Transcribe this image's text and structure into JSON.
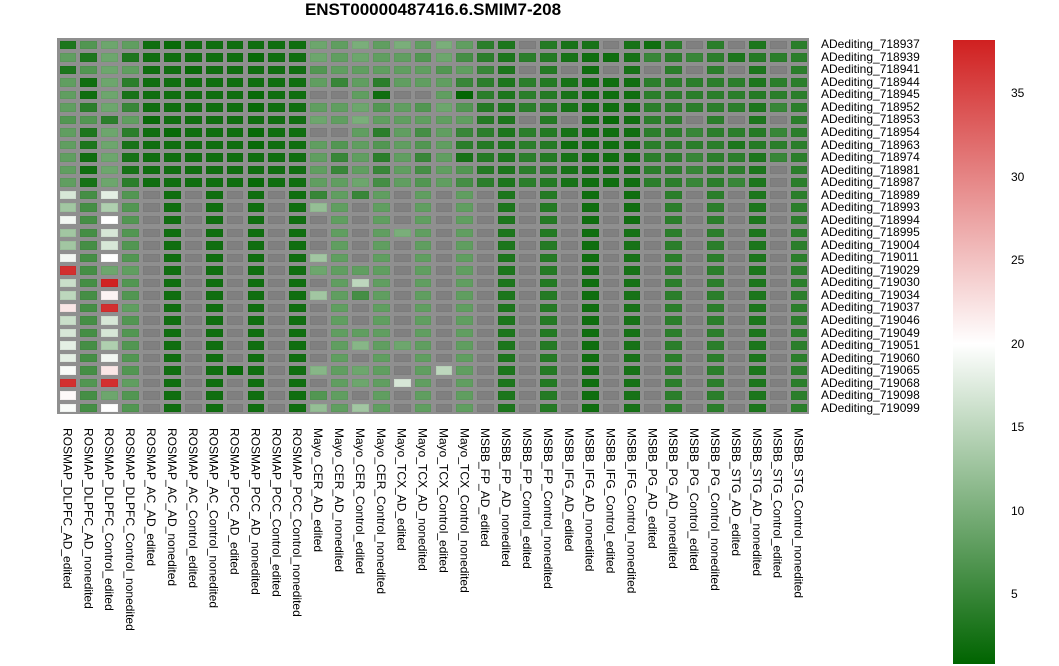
{
  "chart_data": {
    "type": "heatmap",
    "title": "ENST00000487416.6.SMIM7-208",
    "columns": [
      "ROSMAP_DLPFC_AD_edited",
      "ROSMAP_DLPFC_AD_nonedited",
      "ROSMAP_DLPFC_Control_edited",
      "ROSMAP_DLPFC_Control_nonedited",
      "ROSMAP_AC_AD_edited",
      "ROSMAP_AC_AD_nonedited",
      "ROSMAP_AC_Control_edited",
      "ROSMAP_AC_Control_nonedited",
      "ROSMAP_PCC_AD_edited",
      "ROSMAP_PCC_AD_nonedited",
      "ROSMAP_PCC_Control_edited",
      "ROSMAP_PCC_Control_nonedited",
      "Mayo_CER_AD_edited",
      "Mayo_CER_AD_nonedited",
      "Mayo_CER_Control_edited",
      "Mayo_CER_Control_nonedited",
      "Mayo_TCX_AD_edited",
      "Mayo_TCX_AD_nonedited",
      "Mayo_TCX_Control_edited",
      "Mayo_TCX_Control_nonedited",
      "MSBB_FP_AD_edited",
      "MSBB_FP_AD_nonedited",
      "MSBB_FP_Control_edited",
      "MSBB_FP_Control_nonedited",
      "MSBB_IFG_AD_edited",
      "MSBB_IFG_AD_nonedited",
      "MSBB_IFG_Control_edited",
      "MSBB_IFG_Control_nonedited",
      "MSBB_PG_AD_edited",
      "MSBB_PG_AD_nonedited",
      "MSBB_PG_Control_edited",
      "MSBB_PG_Control_nonedited",
      "MSBB_STG_AD_edited",
      "MSBB_STG_AD_nonedited",
      "MSBB_STG_Control_edited",
      "MSBB_STG_Control_nonedited"
    ],
    "rows": [
      "ADediting_718937",
      "ADediting_718939",
      "ADediting_718941",
      "ADediting_718944",
      "ADediting_718945",
      "ADediting_718952",
      "ADediting_718953",
      "ADediting_718954",
      "ADediting_718963",
      "ADediting_718974",
      "ADediting_718981",
      "ADediting_718987",
      "ADediting_718989",
      "ADediting_718993",
      "ADediting_718994",
      "ADediting_718995",
      "ADediting_719004",
      "ADediting_719011",
      "ADediting_719029",
      "ADediting_719030",
      "ADediting_719034",
      "ADediting_719037",
      "ADediting_719046",
      "ADediting_719049",
      "ADediting_719051",
      "ADediting_719060",
      "ADediting_719065",
      "ADediting_719068",
      "ADediting_719098",
      "ADediting_719099"
    ],
    "values": [
      [
        3,
        7,
        9,
        8,
        2,
        1.5,
        2,
        2,
        2,
        2,
        2,
        2,
        9,
        8,
        10,
        8,
        10,
        8,
        10,
        8,
        4,
        3,
        null,
        3.5,
        2.5,
        2.5,
        null,
        2.5,
        2,
        4,
        null,
        4,
        null,
        3,
        null,
        4
      ],
      [
        8,
        3,
        9,
        3,
        2,
        2,
        2,
        2,
        2,
        1.5,
        2,
        2,
        9,
        8,
        9,
        8,
        8,
        7,
        9,
        6,
        4,
        3,
        4,
        3.5,
        2.5,
        2,
        2,
        2.5,
        5,
        4,
        5,
        4,
        3,
        3.5,
        4,
        4
      ],
      [
        3,
        7,
        9,
        8,
        2,
        2,
        1.5,
        2,
        2,
        2,
        2,
        2,
        7,
        8,
        8,
        8,
        8,
        8,
        7,
        8,
        5,
        3,
        null,
        3.5,
        null,
        2,
        null,
        2.5,
        null,
        4,
        null,
        4,
        null,
        3,
        null,
        4
      ],
      [
        8,
        2,
        9,
        4,
        2,
        2,
        2,
        2,
        2,
        2,
        2,
        2,
        8,
        5,
        8,
        4,
        8,
        8,
        8,
        5,
        4,
        3,
        4,
        3.5,
        2.5,
        2,
        2,
        2,
        4,
        4,
        4,
        4,
        4,
        3,
        4,
        4
      ],
      [
        8,
        2,
        9,
        2.5,
        2,
        2,
        2,
        2,
        2,
        1.5,
        2,
        2,
        null,
        null,
        8,
        2,
        null,
        null,
        8,
        1,
        4,
        3,
        4,
        3.5,
        2.5,
        2,
        2,
        2,
        4,
        4,
        4,
        4,
        4,
        3.5,
        4,
        4
      ],
      [
        8,
        4,
        9,
        5,
        2,
        2,
        2,
        2,
        2,
        1.5,
        2,
        2,
        8,
        8,
        9,
        7,
        8,
        7,
        9,
        7,
        3.5,
        3,
        4,
        3.5,
        2.5,
        2,
        2,
        2,
        4,
        4,
        4,
        4,
        4,
        3,
        5,
        4
      ],
      [
        7,
        7,
        4,
        8,
        1.5,
        2,
        2,
        2,
        2,
        2,
        2,
        2,
        9,
        8,
        10,
        8,
        8,
        8,
        8,
        8,
        3.5,
        3,
        null,
        3.5,
        null,
        2,
        1.5,
        2,
        4,
        4,
        null,
        4,
        null,
        3,
        null,
        4
      ],
      [
        8,
        3,
        9,
        4,
        2,
        1.5,
        2,
        2,
        2,
        1.5,
        2,
        2,
        null,
        null,
        8,
        4,
        8,
        6,
        8,
        5,
        4,
        3,
        4,
        3.5,
        2.5,
        2,
        2,
        2,
        4,
        4,
        5,
        4,
        4,
        3.5,
        5,
        4
      ],
      [
        8,
        3,
        9,
        2.5,
        2,
        2,
        2,
        2,
        2,
        1.5,
        2,
        2,
        8,
        7,
        8,
        7,
        8,
        7,
        8,
        4,
        3.5,
        3,
        4,
        3.5,
        2,
        2,
        2,
        2,
        4,
        4,
        4,
        4,
        3,
        3.5,
        4,
        4
      ],
      [
        8,
        2,
        9,
        2.5,
        2,
        2,
        2,
        2,
        2,
        2,
        2,
        2,
        8,
        5,
        8,
        4,
        8,
        5,
        8,
        2.5,
        3.5,
        3,
        4,
        3.5,
        2.5,
        2,
        2,
        2,
        4,
        4,
        5,
        4,
        4,
        3,
        5,
        4
      ],
      [
        8,
        2,
        9,
        2.5,
        2,
        2,
        2,
        2,
        2,
        2,
        2,
        2,
        8,
        5,
        8,
        5,
        8,
        6,
        8,
        7,
        3.5,
        3,
        4,
        3.5,
        2.5,
        2,
        2,
        2,
        4,
        4,
        5,
        4,
        4,
        3,
        null,
        4
      ],
      [
        8,
        2.5,
        9,
        4,
        2,
        2,
        2,
        2,
        2,
        1.5,
        2,
        2,
        8,
        8,
        9,
        6,
        8,
        7,
        8,
        6,
        4,
        3,
        4,
        3.5,
        2.5,
        2,
        2,
        2,
        4,
        4,
        5,
        4,
        5,
        3,
        null,
        4
      ],
      [
        17,
        6,
        18,
        7,
        null,
        2,
        null,
        2,
        null,
        2,
        null,
        2,
        5,
        8,
        5,
        8,
        null,
        8,
        null,
        8,
        null,
        3,
        null,
        3.5,
        null,
        2,
        null,
        2,
        null,
        4,
        null,
        4,
        null,
        3,
        null,
        4
      ],
      [
        13,
        6,
        14,
        7,
        null,
        2,
        null,
        2,
        null,
        2,
        null,
        2,
        12,
        8,
        null,
        8,
        null,
        8,
        null,
        8,
        null,
        3,
        null,
        3.5,
        null,
        2,
        null,
        2,
        null,
        4,
        null,
        4,
        null,
        3,
        null,
        4
      ],
      [
        19,
        6,
        20,
        7,
        null,
        2,
        null,
        2,
        null,
        2,
        null,
        2,
        null,
        8,
        null,
        8,
        null,
        8,
        null,
        8,
        null,
        3,
        null,
        3.5,
        null,
        2,
        null,
        2,
        null,
        4,
        null,
        4,
        null,
        3,
        null,
        4
      ],
      [
        13,
        6,
        17,
        7,
        null,
        2,
        null,
        2,
        null,
        2,
        null,
        2,
        null,
        8,
        null,
        8,
        10,
        8,
        null,
        8,
        null,
        3,
        null,
        3.5,
        null,
        2,
        null,
        2.5,
        null,
        4,
        null,
        4,
        null,
        3,
        null,
        4
      ],
      [
        13,
        6,
        17,
        7,
        null,
        2,
        null,
        2,
        null,
        2,
        null,
        2,
        null,
        8,
        null,
        8,
        null,
        8,
        null,
        8,
        null,
        3,
        null,
        3.5,
        null,
        2,
        null,
        2.5,
        null,
        4,
        null,
        4,
        null,
        3,
        null,
        4
      ],
      [
        19,
        6,
        20,
        7,
        null,
        2,
        null,
        2,
        null,
        2,
        null,
        2,
        13,
        8,
        null,
        8,
        null,
        8,
        null,
        8,
        null,
        3,
        null,
        3.5,
        null,
        2,
        null,
        2.5,
        null,
        4,
        null,
        4,
        null,
        3,
        null,
        4
      ],
      [
        37,
        6,
        9,
        8,
        null,
        2,
        null,
        2,
        null,
        2,
        null,
        2,
        9,
        8,
        8,
        8,
        null,
        8,
        null,
        8,
        null,
        3,
        null,
        3.5,
        null,
        2,
        null,
        2.5,
        null,
        4,
        null,
        4,
        null,
        3,
        null,
        4
      ],
      [
        16,
        6,
        38,
        7,
        null,
        2,
        null,
        2,
        null,
        2,
        null,
        2,
        null,
        8,
        15,
        8,
        null,
        8,
        null,
        8,
        null,
        3,
        null,
        3.5,
        null,
        2,
        null,
        2.5,
        null,
        4,
        null,
        4,
        null,
        3,
        null,
        4
      ],
      [
        15,
        6,
        21,
        7,
        null,
        2,
        null,
        2,
        null,
        2,
        null,
        2,
        13,
        8,
        6,
        8,
        null,
        8,
        null,
        8,
        null,
        3,
        null,
        3.5,
        null,
        2,
        null,
        2.5,
        null,
        4,
        null,
        4,
        null,
        3,
        null,
        4
      ],
      [
        22,
        6,
        37,
        8,
        null,
        2,
        null,
        2,
        null,
        2,
        null,
        2,
        null,
        8,
        null,
        8,
        null,
        8,
        null,
        8,
        null,
        3,
        null,
        3.5,
        null,
        2,
        null,
        2.5,
        null,
        4,
        null,
        4,
        null,
        3,
        null,
        4
      ],
      [
        16,
        6,
        17,
        7,
        null,
        2,
        null,
        2,
        null,
        2,
        null,
        2,
        null,
        8,
        null,
        8,
        null,
        8,
        null,
        8,
        null,
        3,
        null,
        3.5,
        null,
        2,
        null,
        2.5,
        null,
        4,
        null,
        4,
        null,
        3,
        null,
        4
      ],
      [
        17,
        6,
        17,
        7,
        null,
        2,
        null,
        2,
        null,
        2,
        null,
        2,
        null,
        8,
        8,
        8,
        null,
        8,
        null,
        8,
        null,
        3,
        null,
        3.5,
        null,
        2,
        null,
        2.5,
        null,
        4,
        null,
        4,
        null,
        3,
        null,
        4
      ],
      [
        18,
        6,
        14,
        7,
        null,
        2,
        null,
        2,
        null,
        2,
        null,
        2,
        null,
        8,
        11,
        8,
        9,
        8,
        null,
        8,
        null,
        3,
        null,
        3.5,
        null,
        2,
        null,
        2.5,
        null,
        4,
        null,
        4,
        null,
        3,
        null,
        4
      ],
      [
        18,
        6,
        19,
        7,
        null,
        2,
        null,
        2,
        null,
        2,
        null,
        2,
        null,
        8,
        null,
        8,
        null,
        8,
        null,
        8,
        null,
        3,
        null,
        3.5,
        null,
        2,
        null,
        2.5,
        null,
        4,
        null,
        4,
        null,
        3,
        null,
        4
      ],
      [
        19.5,
        6,
        22,
        7,
        null,
        2,
        null,
        2,
        1.5,
        2,
        null,
        2,
        11,
        8,
        9,
        8,
        null,
        8,
        15,
        8,
        null,
        3,
        null,
        3.5,
        null,
        2,
        null,
        2.5,
        null,
        4,
        null,
        4,
        null,
        3,
        null,
        4
      ],
      [
        37,
        7,
        37,
        8,
        null,
        2,
        null,
        2,
        null,
        2,
        null,
        2,
        null,
        8,
        9,
        8,
        17,
        8,
        null,
        8,
        null,
        3,
        null,
        3.5,
        null,
        2,
        null,
        2.5,
        null,
        4,
        null,
        4,
        null,
        3,
        null,
        4
      ],
      [
        20.5,
        6,
        9,
        7,
        null,
        2,
        null,
        2,
        null,
        2,
        null,
        2,
        7,
        8,
        null,
        8,
        null,
        8,
        null,
        8,
        null,
        3,
        null,
        3.5,
        null,
        2,
        null,
        2.5,
        null,
        4,
        null,
        4,
        null,
        3,
        null,
        4
      ],
      [
        19.5,
        6,
        20,
        7,
        null,
        2,
        null,
        2,
        null,
        2,
        null,
        2,
        12,
        8,
        13,
        8,
        null,
        8,
        null,
        8,
        null,
        3,
        null,
        3.5,
        null,
        2,
        null,
        2.5,
        null,
        4,
        null,
        4,
        null,
        3,
        null,
        4
      ]
    ],
    "color_range": [
      0.8,
      38.2
    ],
    "color_midpoint": 20,
    "colorbar_ticks": [
      5,
      10,
      15,
      20,
      25,
      30,
      35
    ],
    "colors": {
      "low": "#006400",
      "mid": "#ffffff",
      "high": "#d02020",
      "na": "#808080"
    },
    "legend_placement": "right"
  }
}
